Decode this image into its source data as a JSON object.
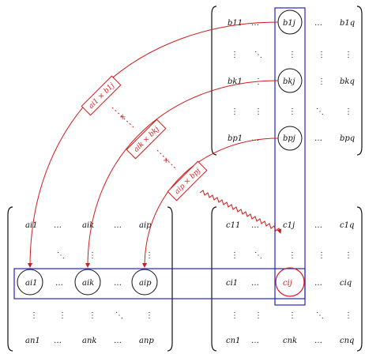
{
  "colors": {
    "red": "#d21c1c",
    "blue": "#2323c8",
    "black": "#111111"
  },
  "matrix_b": {
    "rows": [
      [
        "b11",
        "…",
        "b1j",
        "…",
        "b1q"
      ],
      [
        "⋮",
        "⋱",
        "⋮",
        "⋮",
        "⋮"
      ],
      [
        "bk1",
        "⋮",
        "bkj",
        "⋮",
        "bkq"
      ],
      [
        "⋮",
        "⋮",
        "⋮",
        "⋱",
        "⋮"
      ],
      [
        "bp1",
        "…",
        "bpj",
        "…",
        "bpq"
      ]
    ]
  },
  "matrix_a": {
    "rows": [
      [
        "ai1",
        "…",
        "aik",
        "…",
        "aip"
      ],
      [
        "",
        "⋱",
        "⋮",
        "",
        "⋮"
      ],
      [
        "ai1",
        "…",
        "aik",
        "…",
        "aip"
      ],
      [
        "⋮",
        "⋮",
        "⋮",
        "⋱",
        "⋮"
      ],
      [
        "an1",
        "…",
        "ank",
        "…",
        "anp"
      ]
    ]
  },
  "matrix_c": {
    "rows": [
      [
        "c11",
        "…",
        "c1j",
        "…",
        "c1q"
      ],
      [
        "⋮",
        "⋱",
        "⋮",
        "⋮",
        "⋮"
      ],
      [
        "ci1",
        "…",
        "cij",
        "…",
        "ciq"
      ],
      [
        "⋮",
        "⋮",
        "⋮",
        "⋱",
        "⋮"
      ],
      [
        "cn1",
        "…",
        "cnk",
        "…",
        "cnq"
      ]
    ]
  },
  "products": [
    {
      "label": "ai1 × b1j"
    },
    {
      "label": "aik × bkj"
    },
    {
      "label": "aip × bpj"
    }
  ],
  "connector_dots": [
    "⋯",
    "+",
    "⋯",
    "+"
  ]
}
